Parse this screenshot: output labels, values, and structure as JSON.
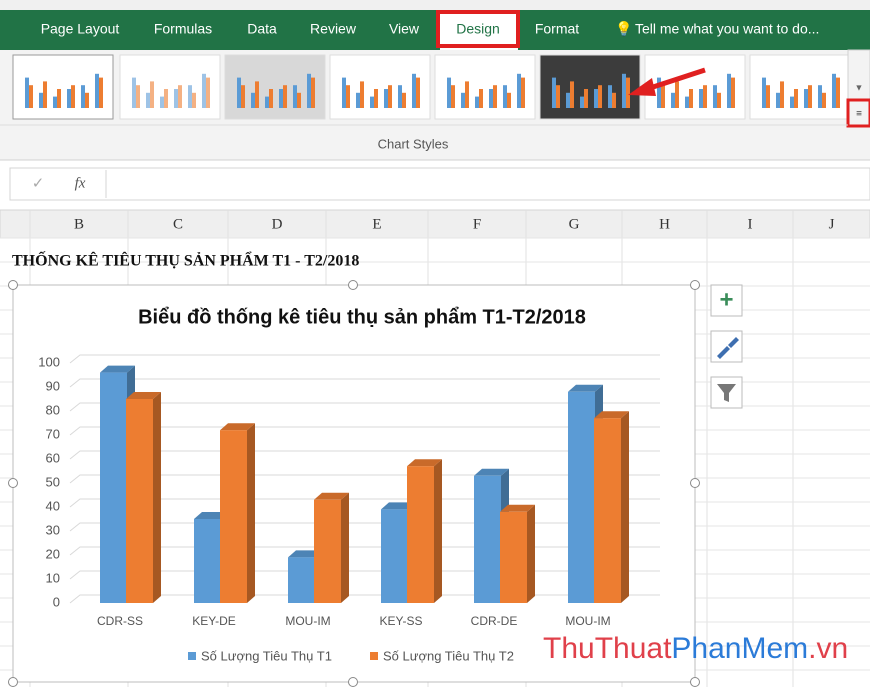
{
  "ribbon": {
    "tabs": [
      "Page Layout",
      "Formulas",
      "Data",
      "Review",
      "View",
      "Design",
      "Format"
    ],
    "search": "Tell me what you want to do...",
    "group_label": "Chart Styles"
  },
  "formula_bar": {
    "function_label": "fx"
  },
  "columns": [
    "B",
    "C",
    "D",
    "E",
    "F",
    "G",
    "H",
    "I",
    "J"
  ],
  "sheet_title": "THỐNG KÊ TIÊU THỤ SẢN PHẨM T1 - T2/2018",
  "chart_data": {
    "type": "bar",
    "title": "Biểu đồ thống kê tiêu thụ sản phẩm T1-T2/2018",
    "categories": [
      "CDR-SS",
      "KEY-DE",
      "MOU-IM",
      "KEY-SS",
      "CDR-DE",
      "MOU-IM"
    ],
    "series": [
      {
        "name": "Số Lượng Tiêu Thụ T1",
        "color": "#5b9bd5",
        "values": [
          96,
          35,
          19,
          39,
          53,
          88
        ]
      },
      {
        "name": "Số Lượng Tiêu Thụ T2",
        "color": "#ed7d31",
        "values": [
          85,
          72,
          43,
          57,
          38,
          77
        ]
      }
    ],
    "ylim": [
      0,
      100
    ],
    "yticks": [
      0,
      10,
      20,
      30,
      40,
      50,
      60,
      70,
      80,
      90,
      100
    ],
    "grid": true,
    "legend": "bottom"
  },
  "watermark": {
    "parts": [
      {
        "text": "ThuThuat",
        "color": "#e0404a"
      },
      {
        "text": "PhanMem",
        "color": "#2b7bd8"
      },
      {
        "text": ".vn",
        "color": "#e0404a"
      }
    ]
  }
}
